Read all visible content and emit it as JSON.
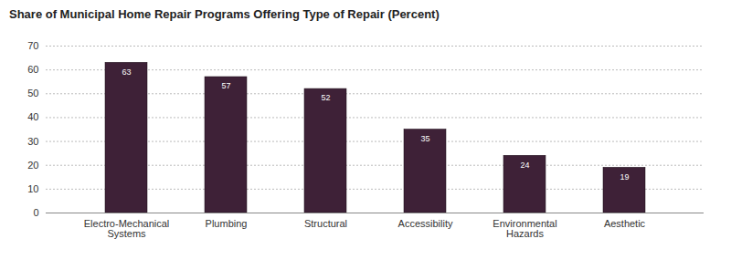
{
  "chart_data": {
    "type": "bar",
    "title": "Share of Municipal Home Repair Programs Offering Type of Repair (Percent)",
    "categories": [
      "Electro-Mechanical Systems",
      "Plumbing",
      "Structural",
      "Accessibility",
      "Environmental Hazards",
      "Aesthetic"
    ],
    "values": [
      63,
      57,
      52,
      35,
      24,
      19
    ],
    "color": "#3e2137",
    "ylim": [
      0,
      70
    ],
    "yticks": [
      0,
      10,
      20,
      30,
      40,
      50,
      60,
      70
    ],
    "grid": true,
    "data_labels": true
  }
}
